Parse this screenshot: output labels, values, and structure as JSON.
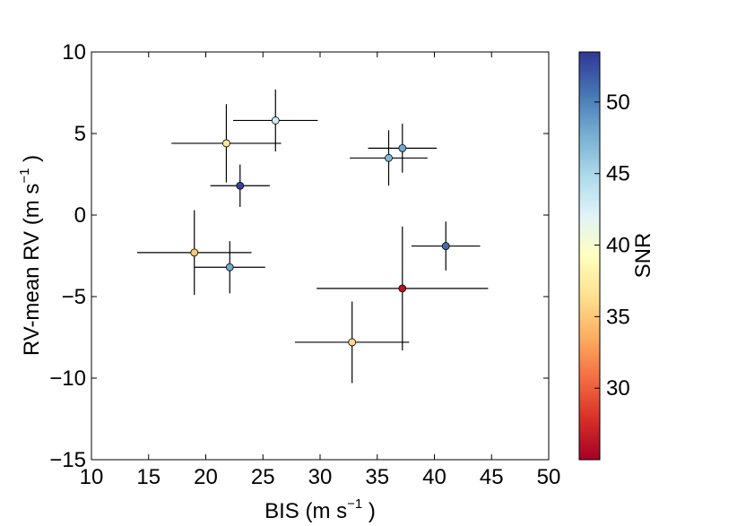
{
  "chart_data": {
    "type": "scatter",
    "title": "",
    "xlabel": "BIS (m s",
    "ylabel": "RV-mean RV (m s",
    "unit_exponent": "−1",
    "xlim": [
      10,
      50
    ],
    "ylim": [
      -15,
      10
    ],
    "x_ticks": [
      "10",
      "15",
      "20",
      "25",
      "30",
      "35",
      "40",
      "45",
      "50"
    ],
    "y_ticks": [
      "10",
      "5",
      "0",
      "−5",
      "−10",
      "−15"
    ],
    "grid": false,
    "colorbar": {
      "label": "SNR",
      "range": [
        25,
        53.5
      ],
      "ticks": [
        "50",
        "45",
        "40",
        "35",
        "30"
      ],
      "tick_values": [
        50,
        45,
        40,
        35,
        30
      ],
      "colormap": "RdYlBu",
      "colors": [
        "#a50026",
        "#d73027",
        "#f46d43",
        "#fdae61",
        "#fee090",
        "#ffffbf",
        "#e0f3f8",
        "#abd9e9",
        "#74add1",
        "#4575b4",
        "#313695"
      ]
    },
    "points": [
      {
        "x": 21.8,
        "y": 4.4,
        "xerr": 4.8,
        "yerr": 2.4,
        "snr": 37
      },
      {
        "x": 26.1,
        "y": 5.8,
        "xerr": 3.7,
        "yerr": 1.9,
        "snr": 43
      },
      {
        "x": 23.0,
        "y": 1.8,
        "xerr": 2.6,
        "yerr": 1.3,
        "snr": 53
      },
      {
        "x": 36.0,
        "y": 3.5,
        "xerr": 3.4,
        "yerr": 1.7,
        "snr": 47
      },
      {
        "x": 37.2,
        "y": 4.1,
        "xerr": 3.0,
        "yerr": 1.5,
        "snr": 48
      },
      {
        "x": 41.0,
        "y": -1.9,
        "xerr": 3.0,
        "yerr": 1.5,
        "snr": 51
      },
      {
        "x": 19.0,
        "y": -2.3,
        "xerr": 5.0,
        "yerr": 2.6,
        "snr": 35
      },
      {
        "x": 22.1,
        "y": -3.2,
        "xerr": 3.1,
        "yerr": 1.6,
        "snr": 48
      },
      {
        "x": 37.2,
        "y": -4.5,
        "xerr": 7.5,
        "yerr": 3.8,
        "snr": 26
      },
      {
        "x": 32.8,
        "y": -7.8,
        "xerr": 5.0,
        "yerr": 2.5,
        "snr": 36
      }
    ]
  }
}
